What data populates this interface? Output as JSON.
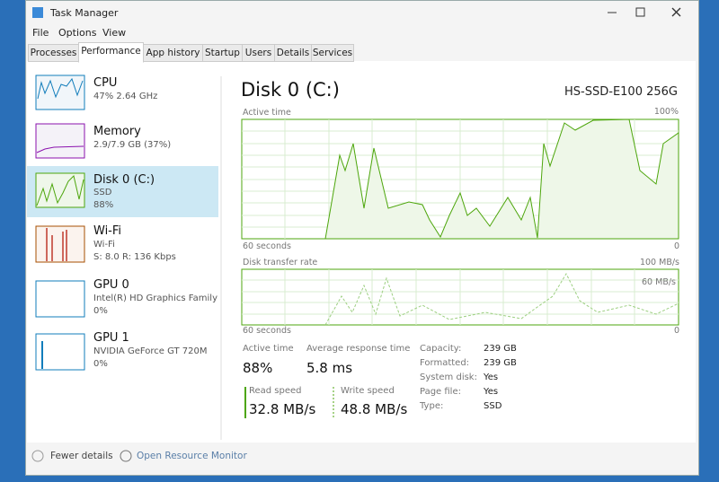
{
  "window": {
    "title": "Task Manager"
  },
  "menu": [
    "File",
    "Options",
    "View"
  ],
  "tabs": [
    "Processes",
    "Performance",
    "App history",
    "Startup",
    "Users",
    "Details",
    "Services"
  ],
  "sidebar": [
    {
      "name": "CPU",
      "detail": "47% 2.64 GHz"
    },
    {
      "name": "Memory",
      "detail": "2.9/7.9 GB (37%)"
    },
    {
      "name": "Disk 0 (C:)",
      "detail": "SSD",
      "value": "88%"
    },
    {
      "name": "Wi-Fi",
      "detail": "Wi-Fi",
      "value": "S: 8.0 R: 136 Kbps"
    },
    {
      "name": "GPU 0",
      "detail": "Intel(R) HD Graphics Family",
      "value": "0%"
    },
    {
      "name": "GPU 1",
      "detail": "NVIDIA GeForce GT 720M",
      "value": "0%"
    }
  ],
  "main": {
    "title": "Disk 0 (C:)",
    "model": "HS-SSD-E100 256G",
    "active_time_graph": {
      "label": "Active time",
      "max": "100%",
      "time": "60 seconds",
      "min": "0"
    },
    "transfer_graph": {
      "label": "Disk transfer rate",
      "max": "100 MB/s",
      "scale": "60 MB/s",
      "time": "60 seconds",
      "min": "0"
    },
    "stats": [
      {
        "label": "Active time",
        "value": "88%"
      },
      {
        "label": "Average response time",
        "value": "5.8 ms"
      },
      {
        "label": "Read speed",
        "value": "32.8 MB/s"
      },
      {
        "label": "Write speed",
        "value": "48.8 MB/s"
      }
    ],
    "properties": [
      {
        "label": "Capacity:",
        "value": "239 GB"
      },
      {
        "label": "Formatted:",
        "value": "239 GB"
      },
      {
        "label": "System disk:",
        "value": "Yes"
      },
      {
        "label": "Page file:",
        "value": "Yes"
      },
      {
        "label": "Type:",
        "value": "SSD"
      }
    ]
  },
  "footer": {
    "fewer_details": "Fewer details",
    "resource_monitor": "Open Resource Monitor"
  }
}
